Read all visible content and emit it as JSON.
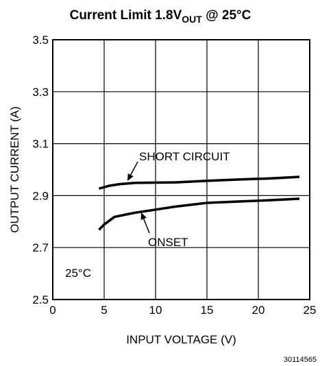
{
  "figure_id": "30114565",
  "chart_data": {
    "type": "line",
    "title": {
      "prefix": "Current Limit 1.8V",
      "subscript": "OUT",
      "suffix": " @ 25°C"
    },
    "xlabel": "INPUT VOLTAGE (V)",
    "ylabel": "OUTPUT CURRENT (A)",
    "xlim": [
      0,
      25
    ],
    "ylim": [
      2.5,
      3.5
    ],
    "xticks": [
      0,
      5,
      10,
      15,
      20,
      25
    ],
    "yticks": [
      2.5,
      2.7,
      2.9,
      3.1,
      3.3,
      3.5
    ],
    "xtick_labels": [
      "0",
      "5",
      "10",
      "15",
      "20",
      "25"
    ],
    "ytick_labels": [
      "2.5",
      "2.7",
      "2.9",
      "3.1",
      "3.3",
      "3.5"
    ],
    "grid": true,
    "temperature_label": "25°C",
    "series": [
      {
        "name": "SHORT CIRCUIT",
        "x": [
          4.5,
          5.5,
          6.5,
          8,
          10,
          12,
          15,
          18,
          21,
          24
        ],
        "y": [
          2.927,
          2.938,
          2.944,
          2.949,
          2.95,
          2.951,
          2.957,
          2.962,
          2.966,
          2.972
        ]
      },
      {
        "name": "ONSET",
        "x": [
          4.5,
          5,
          6,
          7,
          8,
          10,
          12,
          15,
          18,
          21,
          24
        ],
        "y": [
          2.768,
          2.789,
          2.818,
          2.826,
          2.834,
          2.846,
          2.858,
          2.872,
          2.877,
          2.882,
          2.888
        ]
      }
    ],
    "annotations": [
      {
        "text": "SHORT CIRCUIT",
        "series": 0
      },
      {
        "text": "ONSET",
        "series": 1
      }
    ]
  }
}
